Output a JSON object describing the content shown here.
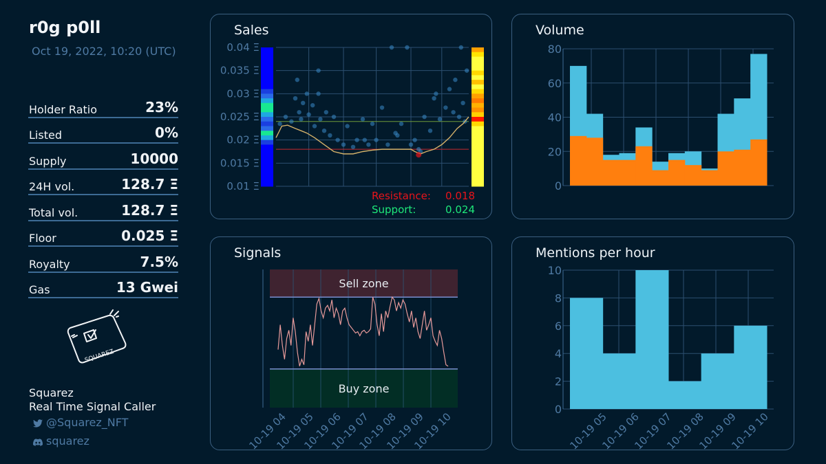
{
  "header": {
    "title": "r0g p0ll",
    "date": "Oct 19, 2022, 10:20 (UTC)"
  },
  "stats": [
    {
      "label": "Holder Ratio",
      "value": "23%"
    },
    {
      "label": "Listed",
      "value": "0%"
    },
    {
      "label": "Supply",
      "value": "10000"
    },
    {
      "label": "24H vol.",
      "value": "128.7 Ξ"
    },
    {
      "label": "Total vol.",
      "value": "128.7 Ξ"
    },
    {
      "label": "Floor",
      "value": "0.025 Ξ"
    },
    {
      "label": "Royalty",
      "value": "7.5%"
    },
    {
      "label": "Gas",
      "value": "13 Gwei"
    }
  ],
  "logo": {
    "text": "SQUAREZ"
  },
  "brand": {
    "name": "Squarez",
    "tagline": "Real Time Signal Caller",
    "twitter": "@Squarez_NFT",
    "discord": "squarez"
  },
  "colors": {
    "background": "#021a2b",
    "panel_border": "#3b5f80",
    "axis_text": "#4f7aa3",
    "volume_total": "#4cbfe0",
    "volume_part": "#ff7f0e",
    "resistance": "#e8141b",
    "support": "#1ee87a"
  },
  "icons": {
    "twitter": "twitter-icon",
    "discord": "discord-icon"
  },
  "chart_data": [
    {
      "id": "sales",
      "type": "scatter",
      "title": "Sales",
      "ylim": [
        0.01,
        0.04
      ],
      "yticks": [
        "0.04 Ξ",
        "0.035 Ξ",
        "0.03 Ξ",
        "0.025 Ξ",
        "0.02 Ξ",
        "0.015 Ξ",
        "0.01 Ξ"
      ],
      "resistance_label": "Resistance:",
      "resistance_value": "0.018",
      "support_label": "Support:",
      "support_value": "0.024",
      "resistance": 0.018,
      "support": 0.024,
      "points": [
        [
          0.02,
          0.0235
        ],
        [
          0.05,
          0.025
        ],
        [
          0.08,
          0.024
        ],
        [
          0.1,
          0.029
        ],
        [
          0.12,
          0.026
        ],
        [
          0.13,
          0.0245
        ],
        [
          0.14,
          0.028
        ],
        [
          0.16,
          0.03
        ],
        [
          0.17,
          0.0255
        ],
        [
          0.19,
          0.0275
        ],
        [
          0.2,
          0.023
        ],
        [
          0.22,
          0.03
        ],
        [
          0.23,
          0.0245
        ],
        [
          0.25,
          0.022
        ],
        [
          0.26,
          0.026
        ],
        [
          0.28,
          0.021
        ],
        [
          0.3,
          0.025
        ],
        [
          0.32,
          0.02
        ],
        [
          0.35,
          0.019
        ],
        [
          0.37,
          0.023
        ],
        [
          0.4,
          0.0185
        ],
        [
          0.42,
          0.02
        ],
        [
          0.45,
          0.0245
        ],
        [
          0.48,
          0.019
        ],
        [
          0.5,
          0.0235
        ],
        [
          0.52,
          0.02
        ],
        [
          0.55,
          0.027
        ],
        [
          0.58,
          0.019
        ],
        [
          0.6,
          0.04
        ],
        [
          0.63,
          0.021
        ],
        [
          0.65,
          0.0235
        ],
        [
          0.68,
          0.04
        ],
        [
          0.7,
          0.019
        ],
        [
          0.72,
          0.02
        ],
        [
          0.74,
          0.018
        ],
        [
          0.75,
          0.0175
        ],
        [
          0.77,
          0.025
        ],
        [
          0.8,
          0.022
        ],
        [
          0.83,
          0.03
        ],
        [
          0.85,
          0.0245
        ],
        [
          0.88,
          0.027
        ],
        [
          0.9,
          0.031
        ],
        [
          0.92,
          0.026
        ],
        [
          0.93,
          0.033
        ],
        [
          0.95,
          0.025
        ],
        [
          0.96,
          0.04
        ],
        [
          0.97,
          0.028
        ],
        [
          0.98,
          0.024
        ],
        [
          0.99,
          0.035
        ],
        [
          0.22,
          0.035
        ],
        [
          0.11,
          0.033
        ],
        [
          0.82,
          0.029
        ],
        [
          0.62,
          0.0215
        ],
        [
          0.46,
          0.02
        ]
      ],
      "trend": [
        [
          0.0,
          0.0205
        ],
        [
          0.03,
          0.023
        ],
        [
          0.06,
          0.0232
        ],
        [
          0.1,
          0.0225
        ],
        [
          0.13,
          0.022
        ],
        [
          0.16,
          0.0215
        ],
        [
          0.2,
          0.0205
        ],
        [
          0.25,
          0.019
        ],
        [
          0.3,
          0.0175
        ],
        [
          0.35,
          0.017
        ],
        [
          0.4,
          0.017
        ],
        [
          0.45,
          0.0175
        ],
        [
          0.5,
          0.0178
        ],
        [
          0.55,
          0.018
        ],
        [
          0.6,
          0.018
        ],
        [
          0.65,
          0.018
        ],
        [
          0.7,
          0.018
        ],
        [
          0.72,
          0.0175
        ],
        [
          0.75,
          0.017
        ],
        [
          0.78,
          0.0175
        ],
        [
          0.82,
          0.018
        ],
        [
          0.86,
          0.019
        ],
        [
          0.9,
          0.0205
        ],
        [
          0.94,
          0.0225
        ],
        [
          0.97,
          0.0235
        ],
        [
          1.0,
          0.025
        ]
      ],
      "left_heat": [
        "#0000ff",
        "#0000ff",
        "#0000ff",
        "#0000ff",
        "#0000ff",
        "#0000ff",
        "#0000ff",
        "#0000ff",
        "#0000ff",
        "#1a3fe0",
        "#2a6ae8",
        "#1ea8e0",
        "#18e890",
        "#18e890",
        "#1ea8e0",
        "#2a6ae8",
        "#1a3fe0",
        "#2a6ae8",
        "#18e890",
        "#1ea8e0",
        "#1a3fe0",
        "#0000ff",
        "#0000ff",
        "#0000ff",
        "#0000ff",
        "#0000ff",
        "#0000ff",
        "#0000ff",
        "#0000ff",
        "#0000ff"
      ],
      "right_heat": [
        "#ffa000",
        "#ffe400",
        "#ffff40",
        "#ffff40",
        "#ffff40",
        "#ffd800",
        "#ffff40",
        "#ffc000",
        "#ffff40",
        "#ffd800",
        "#ffa000",
        "#ff7a00",
        "#ffb000",
        "#ff9000",
        "#ffd000",
        "#ff1a00",
        "#ffd800",
        "#ffff40",
        "#ffff40",
        "#ffff40",
        "#ffff40",
        "#ffff40",
        "#ffff40",
        "#ffff40",
        "#ffff40",
        "#ffff40",
        "#ffff40",
        "#ffff40",
        "#ffff40",
        "#ffff40"
      ]
    },
    {
      "id": "volume",
      "type": "bar",
      "title": "Volume",
      "ylim": [
        0,
        80
      ],
      "yticks": [
        0,
        20,
        40,
        60,
        80
      ],
      "series": [
        {
          "values": [
            70,
            42,
            18,
            19,
            34,
            14,
            19,
            20,
            10,
            42,
            51,
            77
          ]
        },
        {
          "values": [
            29,
            28,
            15,
            15,
            23,
            9,
            15,
            12,
            9,
            20,
            21,
            27
          ]
        }
      ]
    },
    {
      "id": "signals",
      "type": "line",
      "title": "Signals",
      "ylim": [
        0,
        100
      ],
      "sell_zone": [
        80,
        100
      ],
      "buy_zone": [
        0,
        28
      ],
      "sell_label": "Sell zone",
      "buy_label": "Buy zone",
      "xticks": [
        "10-19 04",
        "10-19 05",
        "10-19 06",
        "10-19 07",
        "10-19 08",
        "10-19 09",
        "10-19 10"
      ],
      "values": [
        42,
        60,
        45,
        35,
        50,
        56,
        45,
        65,
        55,
        40,
        30,
        35,
        31,
        55,
        48,
        60,
        45,
        60,
        75,
        79,
        70,
        65,
        72,
        74,
        70,
        78,
        65,
        72,
        68,
        60,
        70,
        72,
        65,
        60,
        58,
        56,
        54,
        55,
        52,
        55,
        56,
        54,
        55,
        57,
        80,
        75,
        60,
        52,
        68,
        55,
        70,
        65,
        73,
        80,
        78,
        70,
        76,
        72,
        78,
        75,
        68,
        62,
        70,
        58,
        65,
        55,
        50,
        60,
        70,
        56,
        60,
        65,
        52,
        48,
        45,
        56,
        50,
        40,
        31,
        30
      ]
    },
    {
      "id": "mentions",
      "type": "bar",
      "title": "Mentions per hour",
      "ylim": [
        0,
        10
      ],
      "yticks": [
        0,
        2,
        4,
        6,
        8,
        10
      ],
      "xticks": [
        "10-19 05",
        "10-19 06",
        "10-19 07",
        "10-19 08",
        "10-19 09",
        "10-19 10"
      ],
      "values": [
        8,
        4,
        10,
        2,
        4,
        6
      ]
    }
  ]
}
